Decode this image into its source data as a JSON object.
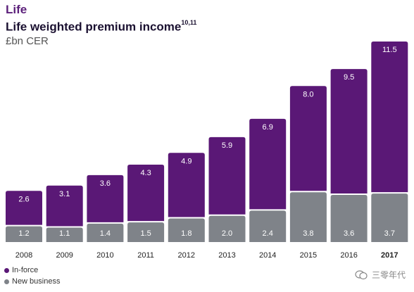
{
  "header": {
    "section": "Life",
    "title": "Life weighted premium income",
    "title_sup": "10,11",
    "subtitle": "£bn CER"
  },
  "legend": [
    {
      "label": "In-force",
      "color": "#5a1876"
    },
    {
      "label": "New business",
      "color": "#7f8389"
    }
  ],
  "watermark": {
    "text": "三零年代"
  },
  "colors": {
    "inforce": "#5a1876",
    "newbiz": "#7f8389",
    "label_text": "#ffffff",
    "axis_text": "#222222"
  },
  "chart_data": {
    "type": "bar",
    "stacked": true,
    "categories": [
      "2008",
      "2009",
      "2010",
      "2011",
      "2012",
      "2013",
      "2014",
      "2015",
      "2016",
      "2017"
    ],
    "highlight_category": "2017",
    "series": [
      {
        "name": "New business",
        "values": [
          1.2,
          1.1,
          1.4,
          1.5,
          1.8,
          2.0,
          2.4,
          3.8,
          3.6,
          3.7
        ]
      },
      {
        "name": "In-force",
        "values": [
          2.6,
          3.1,
          3.6,
          4.3,
          4.9,
          5.9,
          6.9,
          8.0,
          9.5,
          11.5
        ]
      }
    ],
    "title": "Life weighted premium income",
    "ylabel": "£bn CER",
    "ylim": [
      0,
      16
    ]
  }
}
